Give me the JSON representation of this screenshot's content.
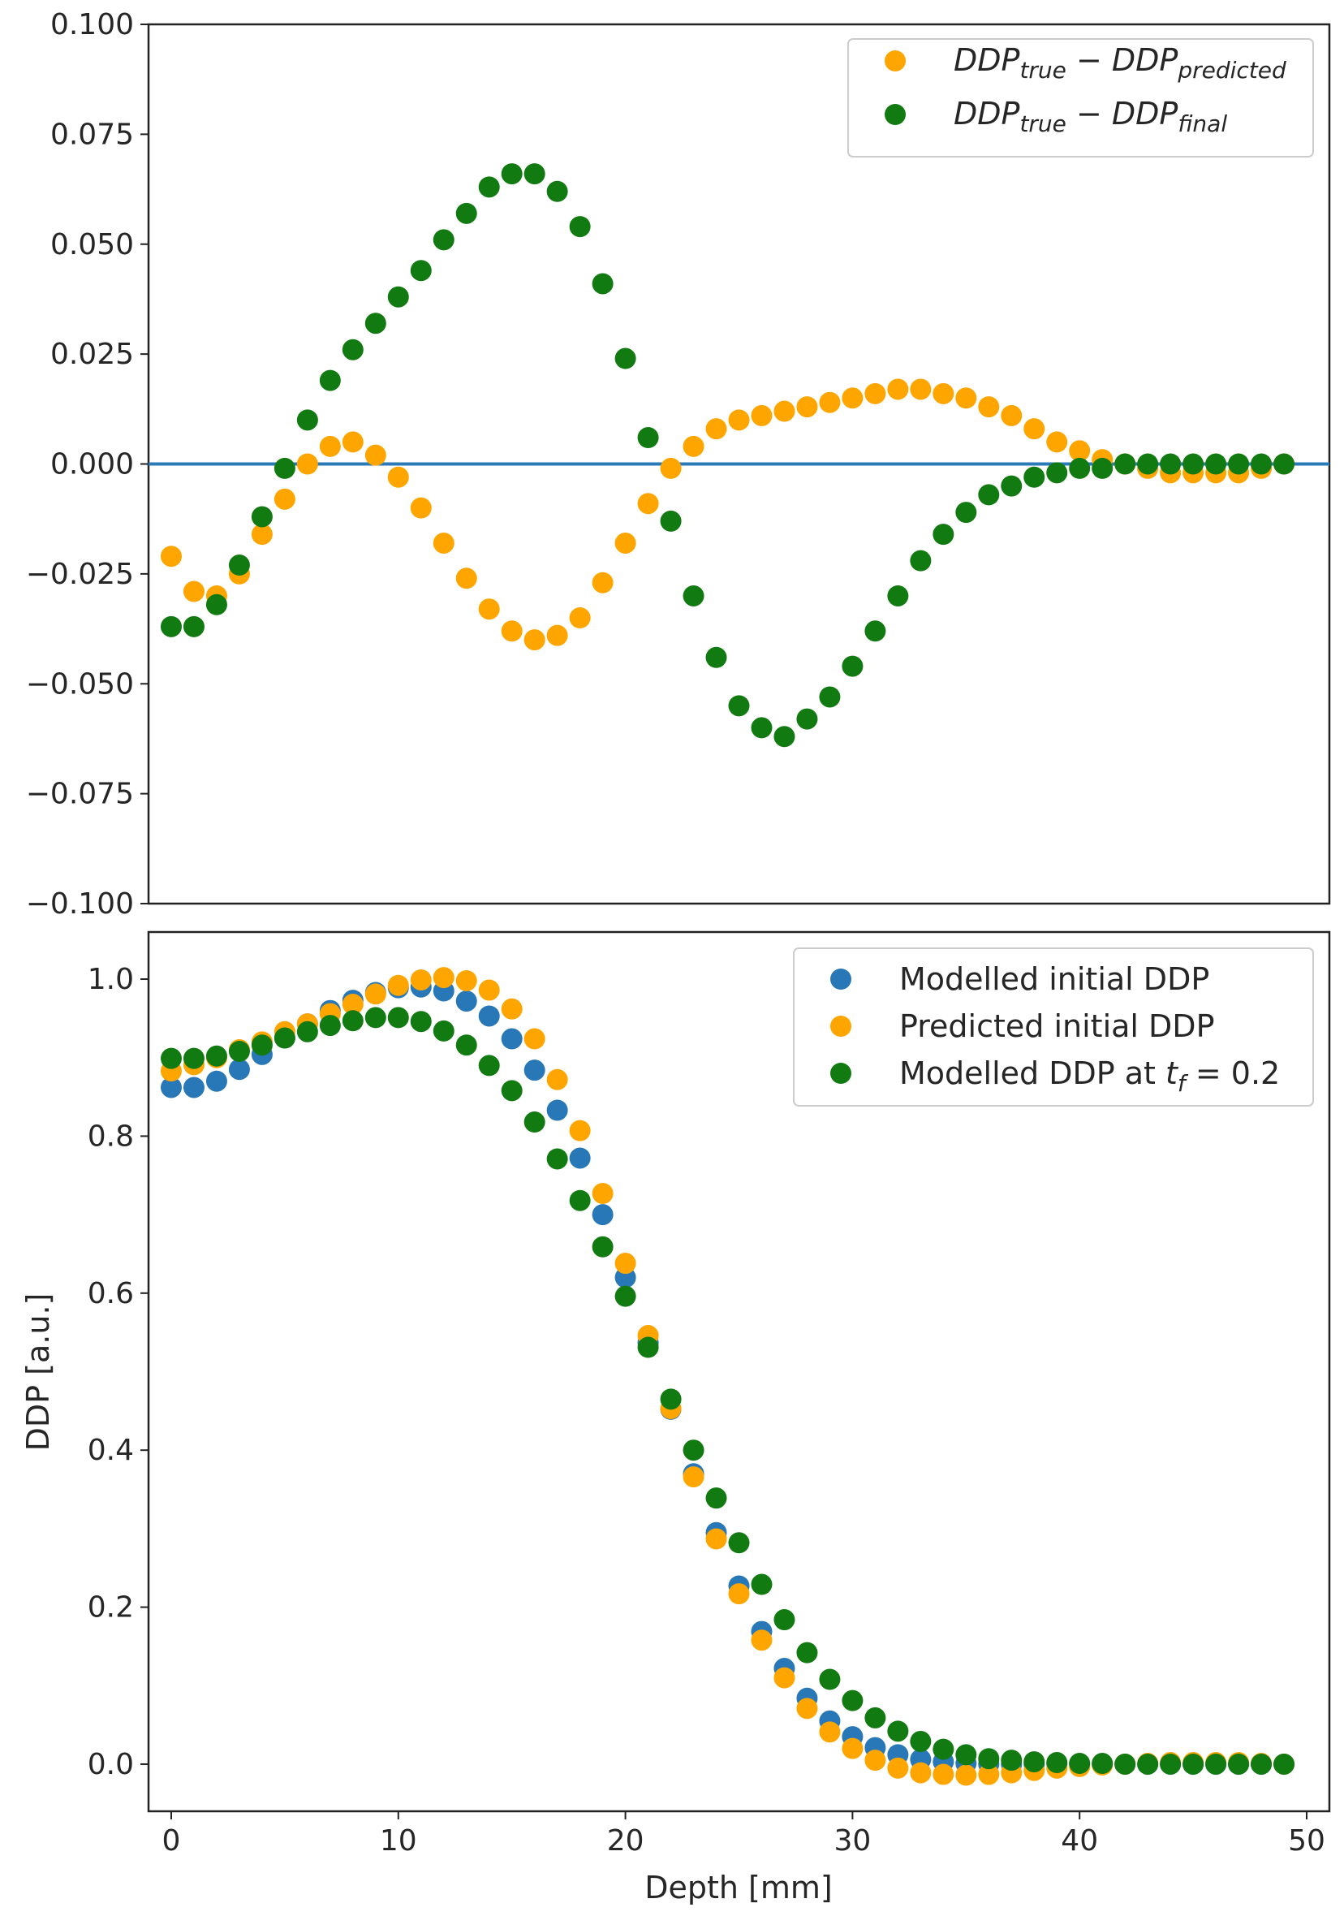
{
  "colors": {
    "orange": "#ffa500",
    "green": "#117a11",
    "blue": "#2878b8",
    "zero_line": "#2a7ab8",
    "axes": "#222222"
  },
  "chart_data": [
    {
      "type": "scatter",
      "name": "residuals",
      "xlabel": "",
      "ylabel": "",
      "xlim": [
        -1,
        51
      ],
      "ylim": [
        -0.1,
        0.1
      ],
      "yticks": [
        {
          "value": 0.1,
          "label": "0.100"
        },
        {
          "value": 0.075,
          "label": "0.075"
        },
        {
          "value": 0.05,
          "label": "0.050"
        },
        {
          "value": 0.025,
          "label": "0.025"
        },
        {
          "value": 0.0,
          "label": "0.000"
        },
        {
          "value": -0.025,
          "label": "−0.025"
        },
        {
          "value": -0.05,
          "label": "−0.050"
        },
        {
          "value": -0.075,
          "label": "−0.075"
        },
        {
          "value": -0.1,
          "label": "−0.100"
        }
      ],
      "hline": 0,
      "legend_position": "top-right",
      "legend": [
        {
          "base1": "DDP",
          "sub1": "true",
          "op": " − ",
          "base2": "DDP",
          "sub2": "predicted",
          "color": "orange"
        },
        {
          "base1": "DDP",
          "sub1": "true",
          "op": " − ",
          "base2": "DDP",
          "sub2": "final",
          "color": "green"
        }
      ],
      "x": [
        0,
        1,
        2,
        3,
        4,
        5,
        6,
        7,
        8,
        9,
        10,
        11,
        12,
        13,
        14,
        15,
        16,
        17,
        18,
        19,
        20,
        21,
        22,
        23,
        24,
        25,
        26,
        27,
        28,
        29,
        30,
        31,
        32,
        33,
        34,
        35,
        36,
        37,
        38,
        39,
        40,
        41,
        42,
        43,
        44,
        45,
        46,
        47,
        48,
        49
      ],
      "series": [
        {
          "name": "DDP_true − DDP_predicted",
          "color": "orange",
          "values": [
            -0.021,
            -0.029,
            -0.03,
            -0.025,
            -0.016,
            -0.008,
            0.0,
            0.004,
            0.005,
            0.002,
            -0.003,
            -0.01,
            -0.018,
            -0.026,
            -0.033,
            -0.038,
            -0.04,
            -0.039,
            -0.035,
            -0.027,
            -0.018,
            -0.009,
            -0.001,
            0.004,
            0.008,
            0.01,
            0.011,
            0.012,
            0.013,
            0.014,
            0.015,
            0.016,
            0.017,
            0.017,
            0.016,
            0.015,
            0.013,
            0.011,
            0.008,
            0.005,
            0.003,
            0.001,
            0.0,
            -0.001,
            -0.002,
            -0.002,
            -0.002,
            -0.002,
            -0.001,
            0.0
          ]
        },
        {
          "name": "DDP_true − DDP_final",
          "color": "green",
          "values": [
            -0.037,
            -0.037,
            -0.032,
            -0.023,
            -0.012,
            -0.001,
            0.01,
            0.019,
            0.026,
            0.032,
            0.038,
            0.044,
            0.051,
            0.057,
            0.063,
            0.066,
            0.066,
            0.062,
            0.054,
            0.041,
            0.024,
            0.006,
            -0.013,
            -0.03,
            -0.044,
            -0.055,
            -0.06,
            -0.062,
            -0.058,
            -0.053,
            -0.046,
            -0.038,
            -0.03,
            -0.022,
            -0.016,
            -0.011,
            -0.007,
            -0.005,
            -0.003,
            -0.002,
            -0.001,
            -0.001,
            0.0,
            0.0,
            0.0,
            0.0,
            0.0,
            0.0,
            0.0,
            0.0
          ]
        }
      ]
    },
    {
      "type": "scatter",
      "name": "ddp_profiles",
      "xlabel": "Depth [mm]",
      "ylabel": "DDP [a.u.]",
      "xlim": [
        -1,
        51
      ],
      "ylim": [
        -0.06,
        1.06
      ],
      "xticks": [
        {
          "value": 0,
          "label": "0"
        },
        {
          "value": 10,
          "label": "10"
        },
        {
          "value": 20,
          "label": "20"
        },
        {
          "value": 30,
          "label": "30"
        },
        {
          "value": 40,
          "label": "40"
        },
        {
          "value": 50,
          "label": "50"
        }
      ],
      "yticks": [
        {
          "value": 1.0,
          "label": "1.0"
        },
        {
          "value": 0.8,
          "label": "0.8"
        },
        {
          "value": 0.6,
          "label": "0.6"
        },
        {
          "value": 0.4,
          "label": "0.4"
        },
        {
          "value": 0.2,
          "label": "0.2"
        },
        {
          "value": 0.0,
          "label": "0.0"
        }
      ],
      "legend_position": "top-right",
      "legend": [
        {
          "text": "Modelled initial DDP",
          "color": "blue"
        },
        {
          "text": "Predicted initial DDP",
          "color": "orange"
        },
        {
          "text": "Modelled DDP at ",
          "math_base": "t",
          "math_sub": "f",
          "math_rest": " = 0.2",
          "color": "green"
        }
      ],
      "x": [
        0,
        1,
        2,
        3,
        4,
        5,
        6,
        7,
        8,
        9,
        10,
        11,
        12,
        13,
        14,
        15,
        16,
        17,
        18,
        19,
        20,
        21,
        22,
        23,
        24,
        25,
        26,
        27,
        28,
        29,
        30,
        31,
        32,
        33,
        34,
        35,
        36,
        37,
        38,
        39,
        40,
        41,
        42,
        43,
        44,
        45,
        46,
        47,
        48,
        49
      ],
      "series": [
        {
          "name": "Modelled initial DDP",
          "color": "blue",
          "values": [
            0.862,
            0.862,
            0.87,
            0.885,
            0.904,
            0.925,
            0.943,
            0.96,
            0.973,
            0.983,
            0.989,
            0.99,
            0.985,
            0.972,
            0.953,
            0.924,
            0.884,
            0.833,
            0.772,
            0.7,
            0.62,
            0.537,
            0.452,
            0.37,
            0.295,
            0.227,
            0.169,
            0.122,
            0.084,
            0.055,
            0.035,
            0.021,
            0.012,
            0.006,
            0.003,
            0.001,
            0.0,
            0.0,
            0.0,
            0.0,
            0.0,
            0.0,
            0.0,
            0.0,
            0.0,
            0.0,
            0.0,
            0.0,
            0.0,
            0.0
          ]
        },
        {
          "name": "Predicted initial DDP",
          "color": "orange",
          "values": [
            0.883,
            0.891,
            0.9,
            0.91,
            0.92,
            0.933,
            0.943,
            0.956,
            0.968,
            0.981,
            0.992,
            0.999,
            1.002,
            0.998,
            0.986,
            0.962,
            0.924,
            0.872,
            0.807,
            0.727,
            0.638,
            0.546,
            0.453,
            0.366,
            0.287,
            0.217,
            0.158,
            0.11,
            0.071,
            0.041,
            0.02,
            0.005,
            -0.005,
            -0.011,
            -0.013,
            -0.014,
            -0.013,
            -0.011,
            -0.008,
            -0.005,
            -0.003,
            -0.001,
            0.0,
            0.001,
            0.002,
            0.002,
            0.002,
            0.002,
            0.001,
            0.0
          ]
        },
        {
          "name": "Modelled DDP at tf = 0.2",
          "color": "green",
          "values": [
            0.899,
            0.899,
            0.902,
            0.908,
            0.916,
            0.925,
            0.933,
            0.941,
            0.947,
            0.951,
            0.951,
            0.946,
            0.934,
            0.916,
            0.89,
            0.858,
            0.818,
            0.771,
            0.718,
            0.659,
            0.596,
            0.531,
            0.465,
            0.4,
            0.339,
            0.282,
            0.229,
            0.184,
            0.142,
            0.108,
            0.081,
            0.059,
            0.042,
            0.029,
            0.019,
            0.012,
            0.007,
            0.005,
            0.003,
            0.002,
            0.001,
            0.001,
            0.0,
            0.0,
            0.0,
            0.0,
            0.0,
            0.0,
            0.0,
            0.0
          ]
        }
      ]
    }
  ]
}
